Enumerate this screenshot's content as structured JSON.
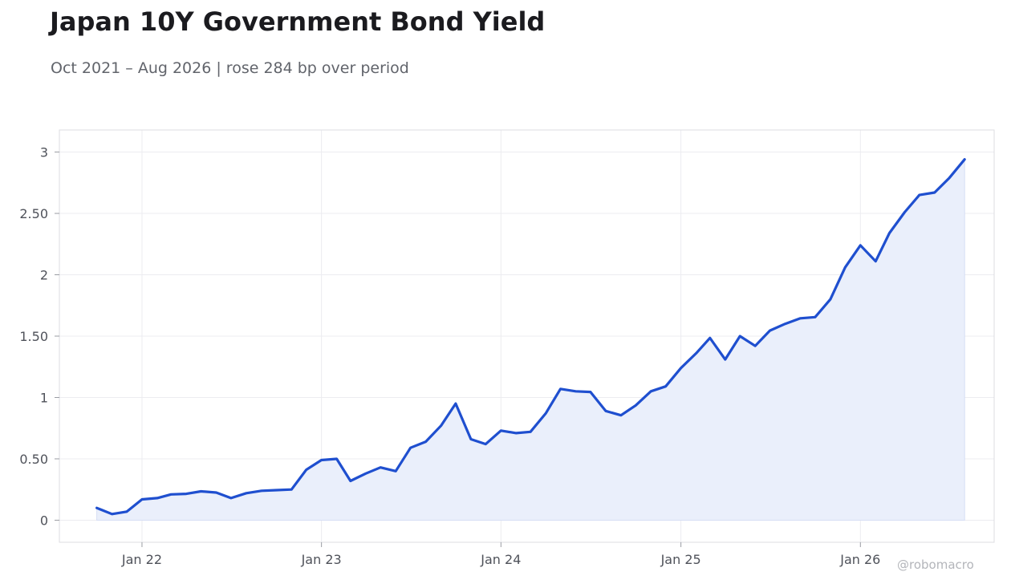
{
  "title": "Japan 10Y Government Bond Yield",
  "subtitle": "Oct 2021 – Aug 2026 | rose 284 bp over period",
  "credit": "@robomacro",
  "colors": {
    "line": "#1f4fcf",
    "fill": "#eaeffb",
    "grid": "#ececf0",
    "frame": "#dcdde2"
  },
  "chart_data": {
    "type": "area",
    "x_axis": {
      "ticks": [
        "2022-01-01",
        "2023-01-01",
        "2024-01-01",
        "2025-01-01",
        "2026-01-01"
      ],
      "tick_labels": [
        "Jan 22",
        "Jan 23",
        "Jan 24",
        "Jan 25",
        "Jan 26"
      ]
    },
    "y_axis": {
      "ticks": [
        0,
        0.5,
        1,
        1.5,
        2,
        2.5,
        3
      ],
      "tick_labels": [
        "0",
        "0.50",
        "1",
        "1.50",
        "2",
        "2.50",
        "3"
      ],
      "ylim": [
        -0.18,
        3.18
      ]
    },
    "xlim": [
      "2021-07-17",
      "2026-09-30"
    ],
    "grid": true,
    "series": [
      {
        "x": [
          "2021-10-01",
          "2021-11-01",
          "2021-12-01",
          "2022-01-01",
          "2022-02-01",
          "2022-03-01",
          "2022-04-01",
          "2022-05-01",
          "2022-06-01",
          "2022-07-01",
          "2022-08-01",
          "2022-09-01",
          "2022-10-01",
          "2022-11-01",
          "2022-12-01",
          "2023-01-01",
          "2023-02-01",
          "2023-03-01",
          "2023-04-01",
          "2023-05-01",
          "2023-06-01",
          "2023-07-01",
          "2023-08-01",
          "2023-09-01",
          "2023-10-01",
          "2023-11-01",
          "2023-12-01",
          "2024-01-01",
          "2024-02-01",
          "2024-03-01",
          "2024-04-01",
          "2024-05-01",
          "2024-06-01",
          "2024-07-01",
          "2024-08-01",
          "2024-09-01",
          "2024-10-01",
          "2024-11-01",
          "2024-12-01",
          "2025-01-01",
          "2025-02-01",
          "2025-03-01",
          "2025-04-01",
          "2025-05-01",
          "2025-06-01",
          "2025-07-01",
          "2025-08-01",
          "2025-09-01",
          "2025-10-01",
          "2025-11-01",
          "2025-12-01",
          "2026-01-01",
          "2026-02-01",
          "2026-03-01",
          "2026-04-01",
          "2026-05-01",
          "2026-06-01",
          "2026-07-01",
          "2026-08-01"
        ],
        "values": [
          0.1,
          0.05,
          0.07,
          0.17,
          0.18,
          0.21,
          0.215,
          0.235,
          0.225,
          0.18,
          0.22,
          0.24,
          0.245,
          0.25,
          0.41,
          0.49,
          0.5,
          0.32,
          0.38,
          0.43,
          0.4,
          0.59,
          0.64,
          0.77,
          0.95,
          0.66,
          0.62,
          0.73,
          0.71,
          0.72,
          0.87,
          1.07,
          1.05,
          1.045,
          0.89,
          0.855,
          0.935,
          1.05,
          1.09,
          1.24,
          1.36,
          1.485,
          1.31,
          1.5,
          1.42,
          1.545,
          1.6,
          1.645,
          1.655,
          1.8,
          2.06,
          2.24,
          2.11,
          2.34,
          2.51,
          2.65,
          2.67,
          2.79,
          2.94
        ]
      }
    ]
  }
}
